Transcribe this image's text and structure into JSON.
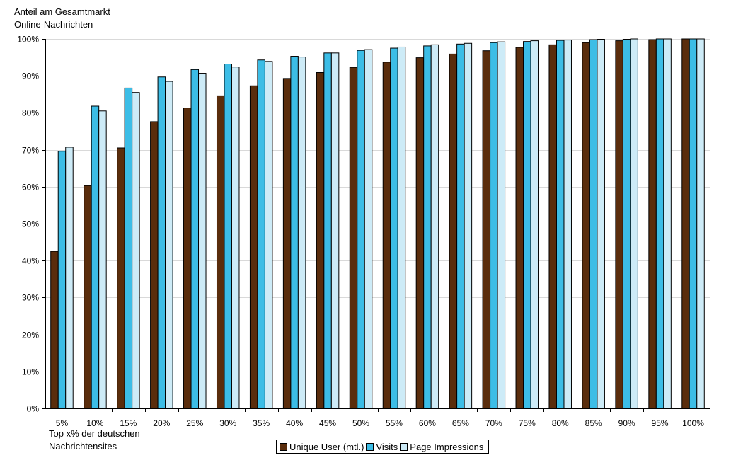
{
  "chart_data": {
    "type": "bar",
    "ylabel": [
      "Anteil am Gesamtmarkt",
      "Online-Nachrichten"
    ],
    "xlabel": [
      "Top x% der deutschen",
      "Nachrichtensites"
    ],
    "categories": [
      "5%",
      "10%",
      "15%",
      "20%",
      "25%",
      "30%",
      "35%",
      "40%",
      "45%",
      "50%",
      "55%",
      "60%",
      "65%",
      "70%",
      "75%",
      "80%",
      "85%",
      "90%",
      "95%",
      "100%"
    ],
    "ylim": [
      0,
      100
    ],
    "yticks": [
      "0%",
      "10%",
      "20%",
      "30%",
      "40%",
      "50%",
      "60%",
      "70%",
      "80%",
      "90%",
      "100%"
    ],
    "grid": true,
    "legend_position": "bottom",
    "series": [
      {
        "name": "Unique User (mtl.)",
        "color": "#5a2d0c",
        "values": [
          42.5,
          60.3,
          70.5,
          77.6,
          81.3,
          84.6,
          87.3,
          89.3,
          90.9,
          92.3,
          93.7,
          94.9,
          95.9,
          96.8,
          97.7,
          98.4,
          99.0,
          99.5,
          99.8,
          100
        ]
      },
      {
        "name": "Visits",
        "color": "#3cbde6",
        "values": [
          69.6,
          81.8,
          86.7,
          89.7,
          91.7,
          93.2,
          94.3,
          95.3,
          96.2,
          96.9,
          97.5,
          98.1,
          98.6,
          99.0,
          99.3,
          99.6,
          99.8,
          99.9,
          100,
          100
        ]
      },
      {
        "name": "Page Impressions",
        "color": "#cdebf7",
        "values": [
          70.7,
          80.5,
          85.5,
          88.5,
          90.7,
          92.4,
          93.9,
          95.1,
          96.2,
          97.1,
          97.8,
          98.4,
          98.8,
          99.2,
          99.5,
          99.7,
          99.9,
          100,
          100,
          100
        ]
      }
    ]
  }
}
